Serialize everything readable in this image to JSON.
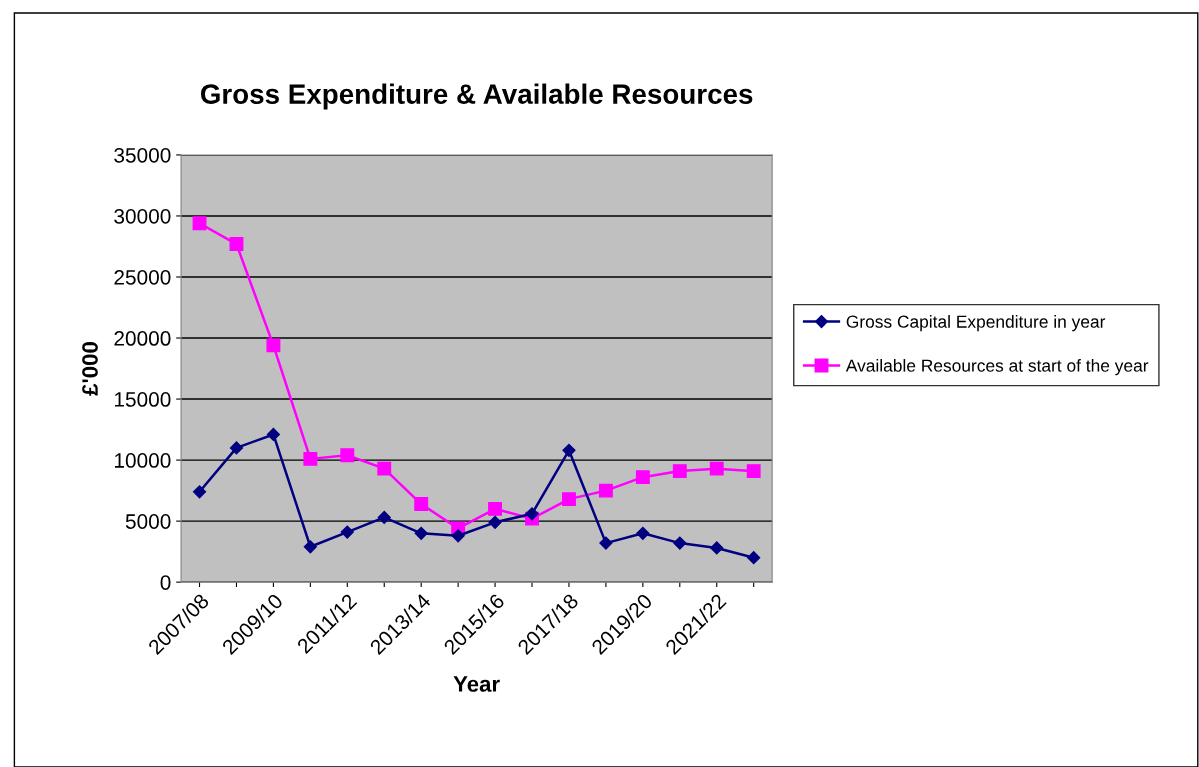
{
  "chart_data": {
    "type": "line",
    "title": "Gross Expenditure & Available Resources",
    "xlabel": "Year",
    "ylabel": "£'000",
    "categories": [
      "2007/08",
      null,
      "2009/10",
      null,
      "2011/12",
      null,
      "2013/14",
      null,
      "2015/16",
      null,
      "2017/18",
      null,
      "2019/20",
      null,
      "2021/22",
      null
    ],
    "series": [
      {
        "name": "Gross Capital Expenditure in year",
        "color": "#000080",
        "marker": "diamond",
        "values": [
          7400,
          11000,
          12100,
          2900,
          4100,
          5300,
          4000,
          3800,
          4900,
          5600,
          10800,
          3200,
          4000,
          3200,
          2800,
          2000
        ]
      },
      {
        "name": "Available Resources at start of the year",
        "color": "#ff00ff",
        "marker": "square",
        "values": [
          29400,
          27700,
          19400,
          10100,
          10400,
          9300,
          6400,
          4400,
          6000,
          5200,
          6800,
          7500,
          8600,
          9100,
          9300,
          9100
        ]
      }
    ],
    "ylim": [
      0,
      35000
    ],
    "yticks": [
      0,
      5000,
      10000,
      15000,
      20000,
      25000,
      30000,
      35000
    ],
    "grid": "y",
    "legend": "right"
  }
}
